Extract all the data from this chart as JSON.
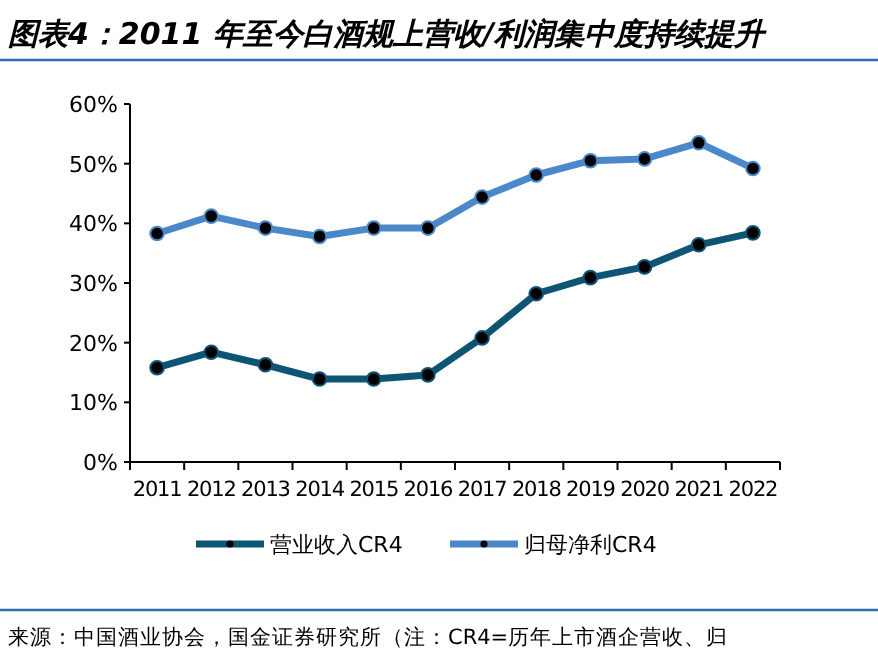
{
  "chart_data": {
    "type": "line",
    "title": "图表4：2011 年至今白酒规上营收/利润集中度持续提升",
    "categories": [
      "2011",
      "2012",
      "2013",
      "2014",
      "2015",
      "2016",
      "2017",
      "2018",
      "2019",
      "2020",
      "2021",
      "2022"
    ],
    "series": [
      {
        "name": "营业收入CR4",
        "color": "#0e5475",
        "values": [
          15.8,
          18.4,
          16.3,
          13.9,
          13.9,
          14.6,
          20.8,
          28.2,
          30.9,
          32.7,
          36.4,
          38.4
        ]
      },
      {
        "name": "归母净利CR4",
        "color": "#4a88c9",
        "values": [
          38.3,
          41.2,
          39.2,
          37.8,
          39.2,
          39.2,
          44.4,
          48.1,
          50.5,
          50.8,
          53.5,
          49.2
        ]
      }
    ],
    "ylim": [
      0,
      60
    ],
    "yticks": [
      {
        "value": 0,
        "label": "0%"
      },
      {
        "value": 10,
        "label": "10%"
      },
      {
        "value": 20,
        "label": "20%"
      },
      {
        "value": 30,
        "label": "30%"
      },
      {
        "value": 40,
        "label": "40%"
      },
      {
        "value": 50,
        "label": "50%"
      },
      {
        "value": 60,
        "label": "60%"
      }
    ],
    "grid": false,
    "legend": "bottom",
    "marker": "circle",
    "line_style": "solid",
    "annotations": [
      "来源：中国酒业协会，国金证券研究所（注：CR4=历年上市酒企营收、归"
    ]
  }
}
